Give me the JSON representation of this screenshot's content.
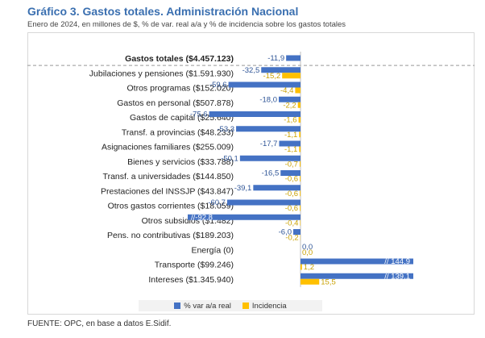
{
  "header": {
    "title": "Gráfico 3. Gastos totales. Administración Nacional",
    "subtitle": "Enero de 2024, en millones de $, % de var. real a/a y % de incidencia sobre los gastos totales"
  },
  "source": "FUENTE: OPC, en base a datos E.Sidif.",
  "colors": {
    "var": "#4472c4",
    "inc": "#ffc000",
    "var_text": "#2f5597",
    "inc_text": "#c9a000",
    "title": "#3a6fb0"
  },
  "legend": {
    "var": "% var a/a real",
    "inc": "Incidencia"
  },
  "chart_data": {
    "type": "bar",
    "orientation": "horizontal",
    "title": "Gráfico 3. Gastos totales. Administración Nacional",
    "subtitle": "Enero de 2024, en millones de $, % de var. real a/a y % de incidencia sobre los gastos totales",
    "categories": [
      "Gastos totales ($4.457.123)",
      "Jubilaciones y pensiones ($1.591.930)",
      "Otros programas ($152.020)",
      "Gastos en personal ($507.878)",
      "Gastos de capital ($25.640)",
      "Transf. a provincias ($48.233)",
      "Asignaciones familiares ($255.009)",
      "Bienes y servicios ($33.788)",
      "Transf. a universidades ($144.850)",
      "Prestaciones del INSSJP ($43.847)",
      "Otros gastos corrientes ($18.059)",
      "Otros subsidios ($1.482)",
      "Pens. no contributivas ($189.203)",
      "Energía (0)",
      "Transporte ($99.246)",
      "Intereses ($1.345.940)"
    ],
    "series": [
      {
        "name": "% var a/a real",
        "values": [
          -11.9,
          -32.5,
          -59.6,
          -18.0,
          -75.6,
          -53.3,
          -17.7,
          -50.1,
          -16.5,
          -39.1,
          -60.7,
          -92.8,
          -6.0,
          0.0,
          144.9,
          139.1
        ],
        "labels": [
          "-11,9",
          "-32,5",
          "-59,6",
          "-18,0",
          "-75,6",
          "-53,3",
          "-17,7",
          "-50,1",
          "-16,5",
          "-39,1",
          "-60,7",
          "//-92,8",
          "-6,0",
          "0,0",
          "// 144,9",
          "// 139,1"
        ],
        "axis_broken": [
          false,
          false,
          false,
          false,
          false,
          false,
          false,
          false,
          false,
          false,
          false,
          true,
          false,
          false,
          true,
          true
        ]
      },
      {
        "name": "Incidencia",
        "values": [
          null,
          -15.2,
          -4.4,
          -2.2,
          -1.6,
          -1.1,
          -1.1,
          -0.7,
          -0.6,
          -0.6,
          -0.6,
          -0.4,
          -0.2,
          0.0,
          1.2,
          15.5
        ],
        "labels": [
          "",
          "-15,2",
          "-4,4",
          "-2,2",
          "-1,6",
          "-1,1",
          "-1,1",
          "-0,7",
          "-0,6",
          "-0,6",
          "-0,6",
          "-0,4",
          "-0,2",
          "0,0",
          "1,2",
          "15,5"
        ]
      }
    ],
    "legend_position": "bottom",
    "grid": false
  }
}
